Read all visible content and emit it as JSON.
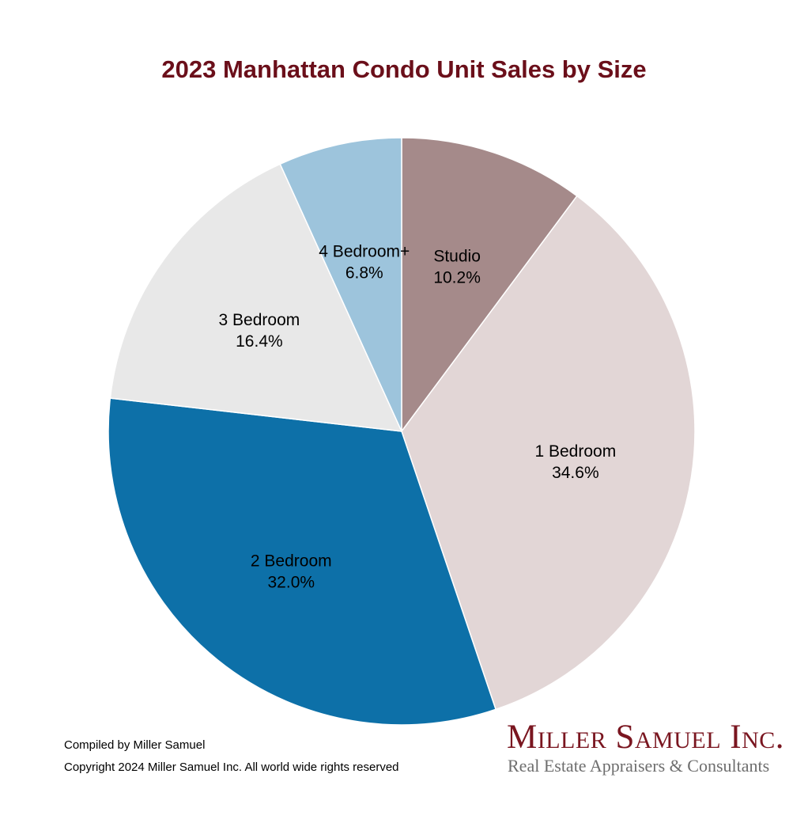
{
  "colors": {
    "title": "#6b0f1a",
    "brand": "#7a1620",
    "brand_tagline": "#6e6e6e",
    "slice_border": "#ffffff"
  },
  "chart_data": {
    "type": "pie",
    "title": "2023 Manhattan Condo Unit Sales by Size",
    "start_angle_deg": 0,
    "direction": "clockwise",
    "slices": [
      {
        "label": "Studio",
        "value": 10.2,
        "value_label": "10.2%",
        "color": "#a58a8a"
      },
      {
        "label": "1 Bedroom",
        "value": 34.6,
        "value_label": "34.6%",
        "color": "#e2d6d6"
      },
      {
        "label": "2 Bedroom",
        "value": 32.0,
        "value_label": "32.0%",
        "color": "#0d70a8"
      },
      {
        "label": "3 Bedroom",
        "value": 16.4,
        "value_label": "16.4%",
        "color": "#e8e8e8"
      },
      {
        "label": "4 Bedroom+",
        "value": 6.8,
        "value_label": "6.8%",
        "color": "#9dc4dc"
      }
    ]
  },
  "footer": {
    "line1": "Compiled by Miller Samuel",
    "line2": "Copyright 2024 Miller Samuel Inc. All world wide rights reserved"
  },
  "brand": {
    "name": "Miller Samuel Inc.",
    "tagline": "Real Estate Appraisers & Consultants"
  }
}
